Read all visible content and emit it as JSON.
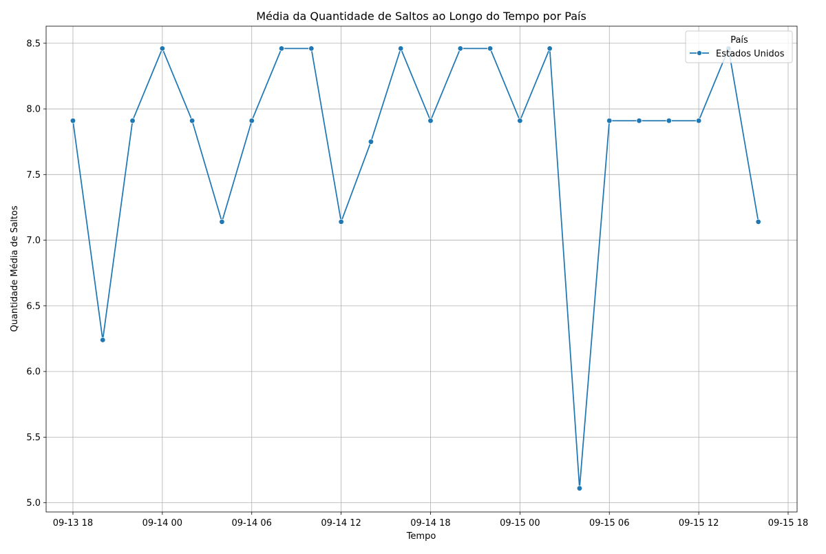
{
  "chart_data": {
    "type": "line",
    "title": "Média da Quantidade de Saltos ao Longo do Tempo por País",
    "xlabel": "Tempo",
    "ylabel": "Quantidade Média de Saltos",
    "legend_title": "País",
    "legend_position": "top-right",
    "grid": true,
    "xlim": [
      "2024-09-13 16:12",
      "2024-09-15 18:36"
    ],
    "ylim": [
      4.93,
      8.63
    ],
    "x_ticks": [
      {
        "value": "2024-09-13 18:00",
        "label": "09-13 18"
      },
      {
        "value": "2024-09-14 00:00",
        "label": "09-14 00"
      },
      {
        "value": "2024-09-14 06:00",
        "label": "09-14 06"
      },
      {
        "value": "2024-09-14 12:00",
        "label": "09-14 12"
      },
      {
        "value": "2024-09-14 18:00",
        "label": "09-14 18"
      },
      {
        "value": "2024-09-15 00:00",
        "label": "09-15 00"
      },
      {
        "value": "2024-09-15 06:00",
        "label": "09-15 06"
      },
      {
        "value": "2024-09-15 12:00",
        "label": "09-15 12"
      },
      {
        "value": "2024-09-15 18:00",
        "label": "09-15 18"
      }
    ],
    "y_ticks": [
      {
        "value": 5.0,
        "label": "5.0"
      },
      {
        "value": 5.5,
        "label": "5.5"
      },
      {
        "value": 6.0,
        "label": "6.0"
      },
      {
        "value": 6.5,
        "label": "6.5"
      },
      {
        "value": 7.0,
        "label": "7.0"
      },
      {
        "value": 7.5,
        "label": "7.5"
      },
      {
        "value": 8.0,
        "label": "8.0"
      },
      {
        "value": 8.5,
        "label": "8.5"
      }
    ],
    "series": [
      {
        "name": "Estados Unidos",
        "color": "#1f77b4",
        "marker": "circle",
        "x": [
          "2024-09-13 18:00",
          "2024-09-13 20:00",
          "2024-09-13 22:00",
          "2024-09-14 00:00",
          "2024-09-14 02:00",
          "2024-09-14 04:00",
          "2024-09-14 06:00",
          "2024-09-14 08:00",
          "2024-09-14 10:00",
          "2024-09-14 12:00",
          "2024-09-14 14:00",
          "2024-09-14 16:00",
          "2024-09-14 18:00",
          "2024-09-14 20:00",
          "2024-09-14 22:00",
          "2024-09-15 00:00",
          "2024-09-15 02:00",
          "2024-09-15 04:00",
          "2024-09-15 06:00",
          "2024-09-15 08:00",
          "2024-09-15 10:00",
          "2024-09-15 12:00",
          "2024-09-15 14:00",
          "2024-09-15 16:00"
        ],
        "y": [
          7.91,
          6.24,
          7.91,
          8.46,
          7.91,
          7.14,
          7.91,
          8.46,
          8.46,
          7.14,
          7.75,
          8.46,
          7.91,
          8.46,
          8.46,
          7.91,
          8.46,
          5.11,
          7.91,
          7.91,
          7.91,
          7.91,
          8.46,
          7.14
        ]
      }
    ]
  }
}
